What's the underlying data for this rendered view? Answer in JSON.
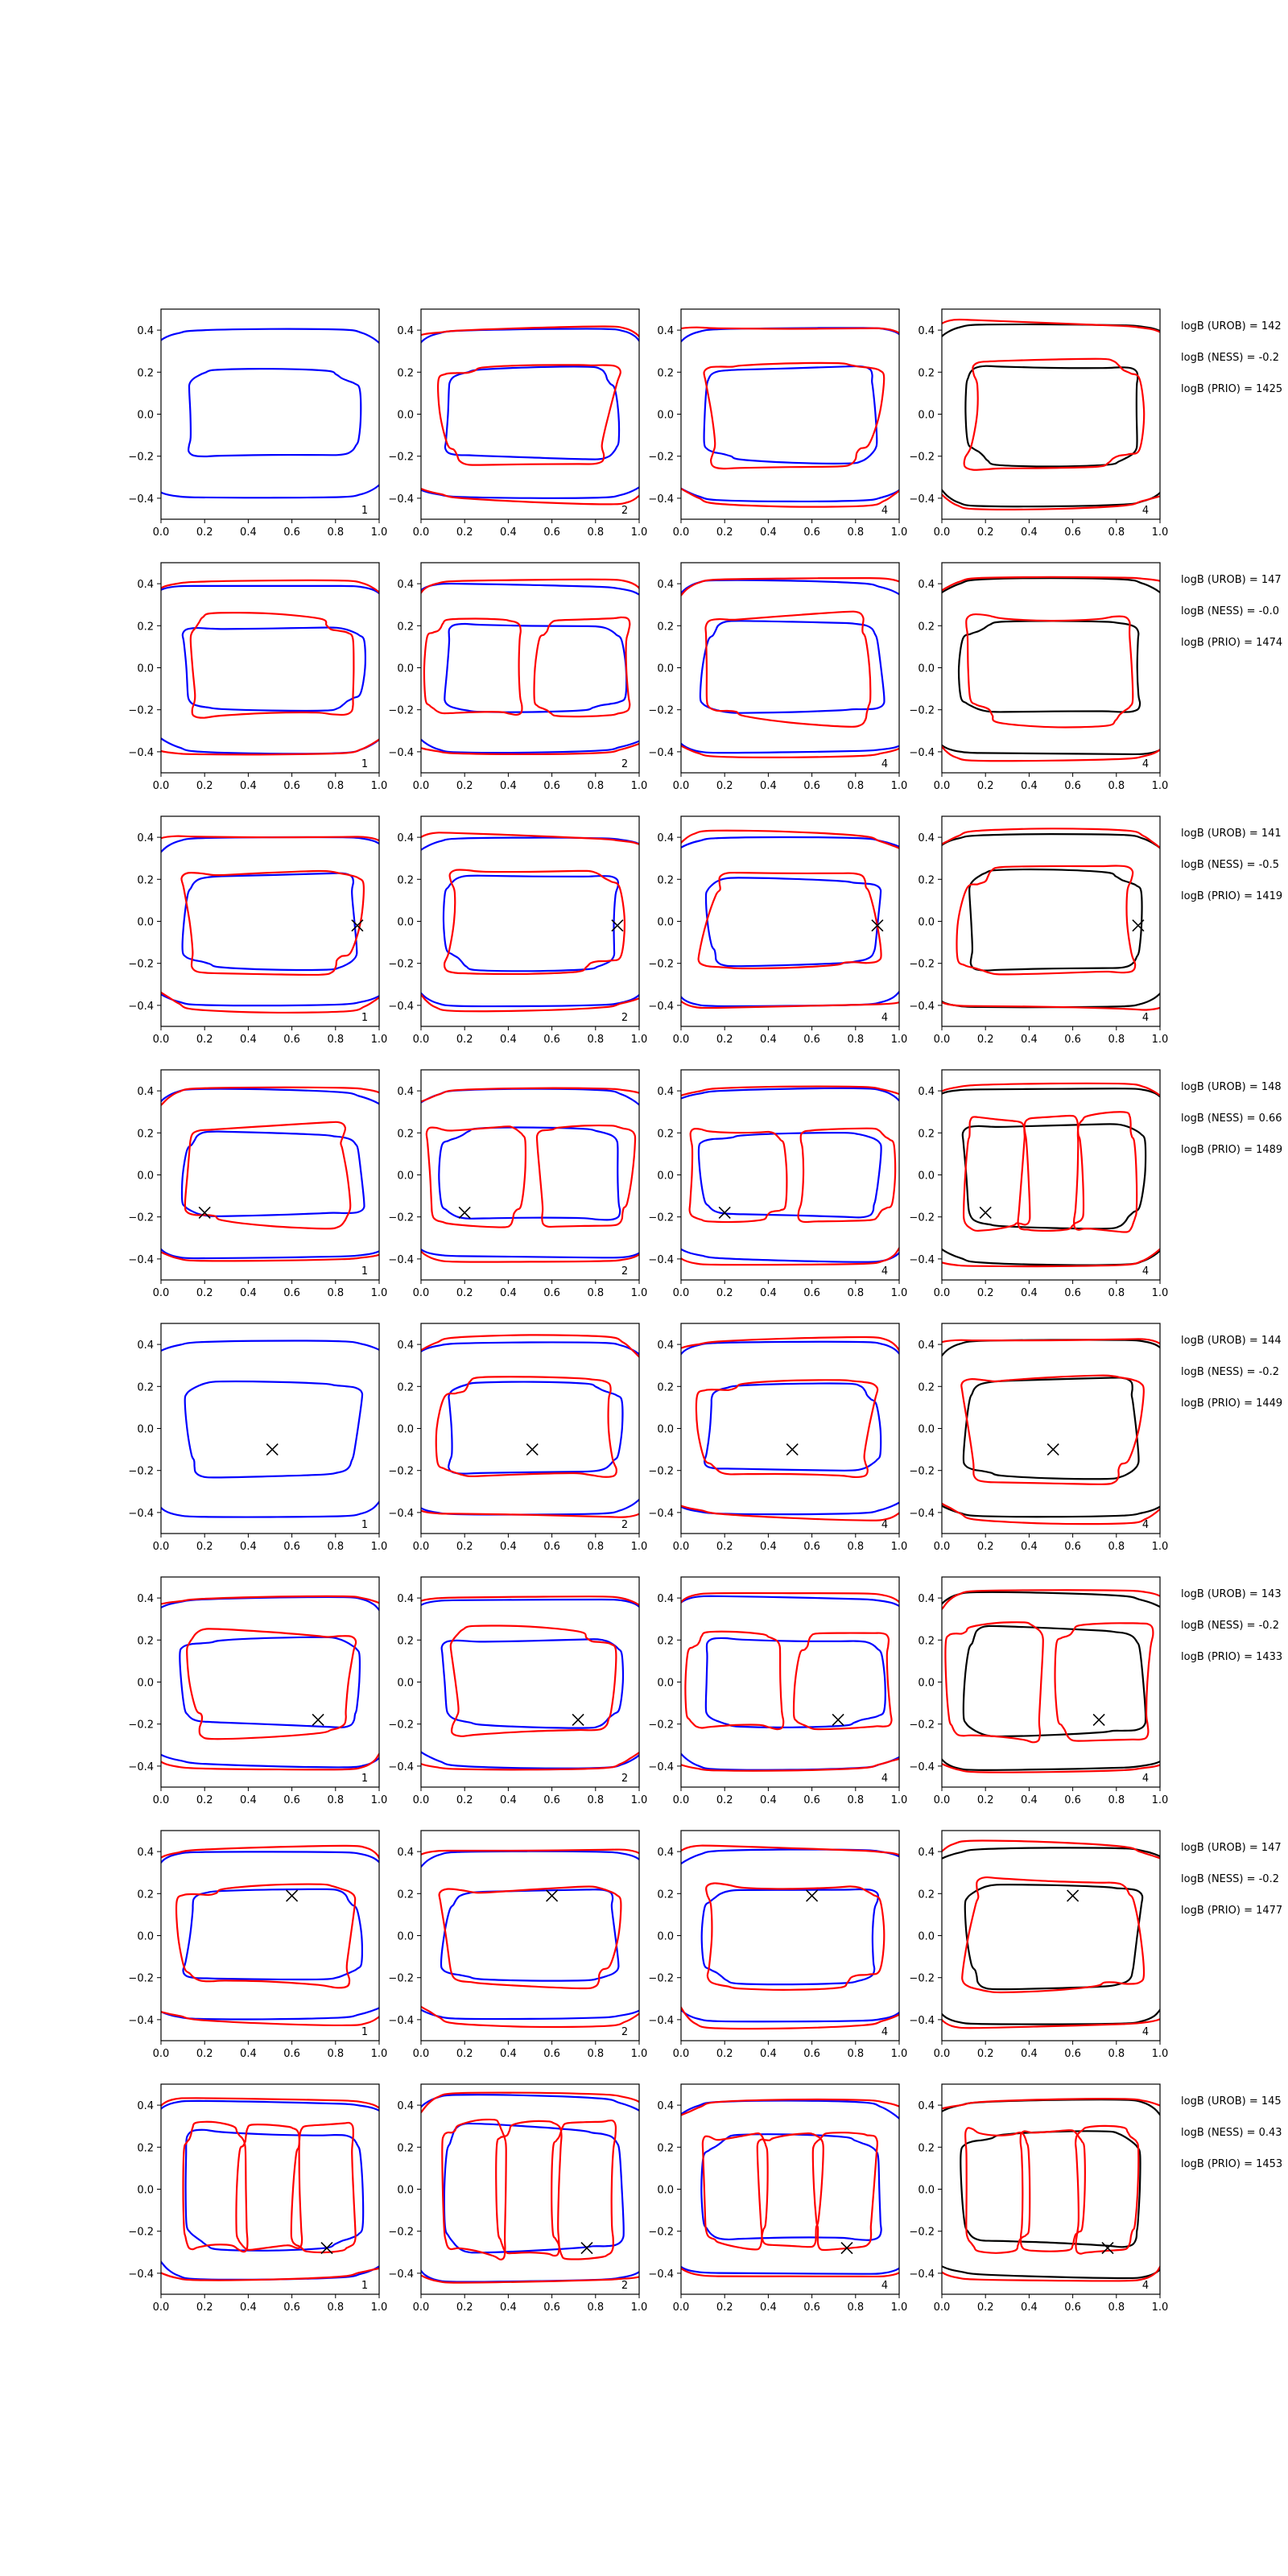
{
  "chart_data": {
    "type": "line",
    "layout": "grid of 8 rows x 4 columns of contour plots",
    "xlim": [
      0.0,
      1.0
    ],
    "ylim": [
      -0.5,
      0.5
    ],
    "x_ticks": [
      "0.0",
      "0.2",
      "0.4",
      "0.6",
      "0.8",
      "1.0"
    ],
    "y_ticks": [
      "0.4",
      "0.2",
      "0.0",
      "−0.2",
      "−0.4"
    ],
    "grid": false,
    "colors": {
      "blue": "#0000ff",
      "red": "#ff0000",
      "black": "#000000",
      "marker": "#000000"
    },
    "panel_labels": [
      "1",
      "2",
      "4",
      "4"
    ],
    "rows": [
      {
        "marker": null,
        "logB": [
          "logB (UROB) = 142",
          "logB (NESS) = -0.2",
          "logB (PRIO) = 1425"
        ],
        "outer": [
          0.4,
          0.4,
          0.41,
          0.43
        ],
        "inner": [
          0.2,
          0.21,
          0.22,
          0.23
        ],
        "red_loops": [
          0,
          1,
          1,
          1
        ]
      },
      {
        "marker": null,
        "logB": [
          "logB (UROB) = 147",
          "logB (NESS) = -0.0",
          "logB (PRIO) = 1474"
        ],
        "outer": [
          0.4,
          0.4,
          0.41,
          0.42
        ],
        "inner": [
          0.2,
          0.21,
          0.22,
          0.22
        ],
        "red_loops": [
          1,
          2,
          1,
          1
        ]
      },
      {
        "marker": [
          0.9,
          -0.02
        ],
        "logB": [
          "logB (UROB) = 141",
          "logB (NESS) = -0.5",
          "logB (PRIO) = 1419"
        ],
        "outer": [
          0.4,
          0.4,
          0.4,
          0.41
        ],
        "inner": [
          0.22,
          0.22,
          0.2,
          0.23
        ],
        "red_loops": [
          1,
          1,
          1,
          1
        ]
      },
      {
        "marker": [
          0.2,
          -0.18
        ],
        "logB": [
          "logB (UROB) = 148",
          "logB (NESS) = 0.66",
          "logB (PRIO) = 1489"
        ],
        "outer": [
          0.4,
          0.4,
          0.41,
          0.42
        ],
        "inner": [
          0.2,
          0.22,
          0.2,
          0.25
        ],
        "red_loops": [
          1,
          2,
          2,
          3
        ]
      },
      {
        "marker": [
          0.51,
          -0.1
        ],
        "logB": [
          "logB (UROB) = 144",
          "logB (NESS) = -0.2",
          "logB (PRIO) = 1449"
        ],
        "outer": [
          0.42,
          0.41,
          0.41,
          0.42
        ],
        "inner": [
          0.22,
          0.21,
          0.2,
          0.23
        ],
        "red_loops": [
          0,
          1,
          1,
          1
        ]
      },
      {
        "marker": [
          0.72,
          -0.18
        ],
        "logB": [
          "logB (UROB) = 143",
          "logB (NESS) = -0.2",
          "logB (PRIO) = 1433"
        ],
        "outer": [
          0.4,
          0.4,
          0.41,
          0.42
        ],
        "inner": [
          0.21,
          0.21,
          0.21,
          0.26
        ],
        "red_loops": [
          1,
          1,
          2,
          2
        ]
      },
      {
        "marker": [
          0.6,
          0.19
        ],
        "logB": [
          "logB (UROB) = 147",
          "logB (NESS) = -0.2",
          "logB (PRIO) = 1477"
        ],
        "outer": [
          0.4,
          0.4,
          0.41,
          0.42
        ],
        "inner": [
          0.21,
          0.21,
          0.22,
          0.24
        ],
        "red_loops": [
          1,
          1,
          1,
          1
        ]
      },
      {
        "marker": [
          0.76,
          -0.28
        ],
        "logB": [
          "logB (UROB) = 145",
          "logB (NESS) = 0.43",
          "logB (PRIO) = 1453"
        ],
        "outer": [
          0.42,
          0.44,
          0.41,
          0.42
        ],
        "inner": [
          0.28,
          0.3,
          0.25,
          0.27
        ],
        "red_loops": [
          3,
          3,
          3,
          3
        ]
      }
    ]
  }
}
